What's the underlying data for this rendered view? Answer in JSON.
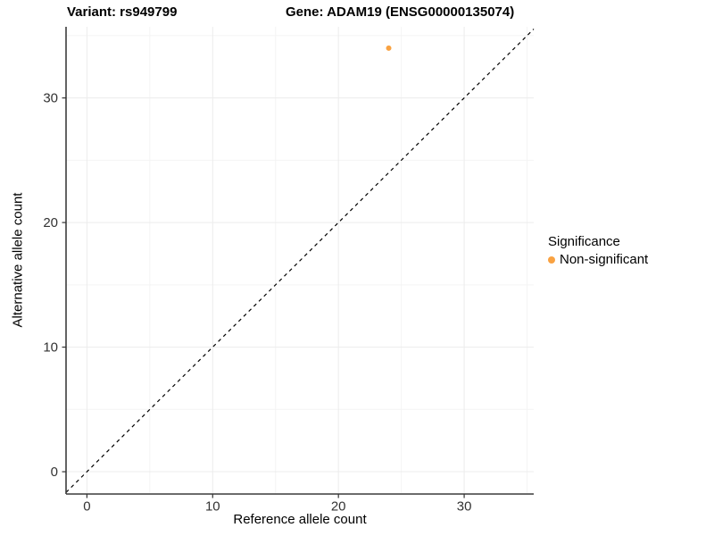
{
  "title": {
    "variant": "Variant: rs949799",
    "gene": "Gene: ADAM19 (ENSG00000135074)"
  },
  "axes": {
    "xlabel": "Reference allele count",
    "ylabel": "Alternative allele count"
  },
  "legend": {
    "title": "Significance",
    "items": [
      {
        "label": "Non-significant",
        "color": "#F9A242"
      }
    ]
  },
  "colors": {
    "point": "#F9A242",
    "grid_major": "#ECECEC",
    "grid_minor": "#F4F4F4",
    "axis_line": "#3C3C3C",
    "tick": "#333333",
    "tick_label": "#333333",
    "reference_line": "#000000"
  },
  "chart_data": {
    "type": "scatter",
    "title_left": "Variant: rs949799",
    "title_right": "Gene: ADAM19 (ENSG00000135074)",
    "xlabel": "Reference allele count",
    "ylabel": "Alternative allele count",
    "xlim": [
      -1.66,
      35.53
    ],
    "ylim": [
      -1.79,
      35.71
    ],
    "xticks": [
      0,
      10,
      20,
      30
    ],
    "yticks": [
      0,
      10,
      20,
      30
    ],
    "xticks_minor": [
      5,
      15,
      25,
      35
    ],
    "yticks_minor": [
      5,
      15,
      25,
      35
    ],
    "grid": true,
    "series": [
      {
        "name": "Non-significant",
        "color": "#F9A242",
        "points": [
          {
            "x": 24,
            "y": 34
          }
        ]
      }
    ],
    "reference_line": {
      "type": "identity",
      "slope": 1,
      "intercept": 0,
      "style": "dashed",
      "color": "#000000"
    },
    "legend": {
      "title": "Significance",
      "position": "right",
      "entries": [
        {
          "label": "Non-significant",
          "color": "#F9A242"
        }
      ]
    }
  }
}
